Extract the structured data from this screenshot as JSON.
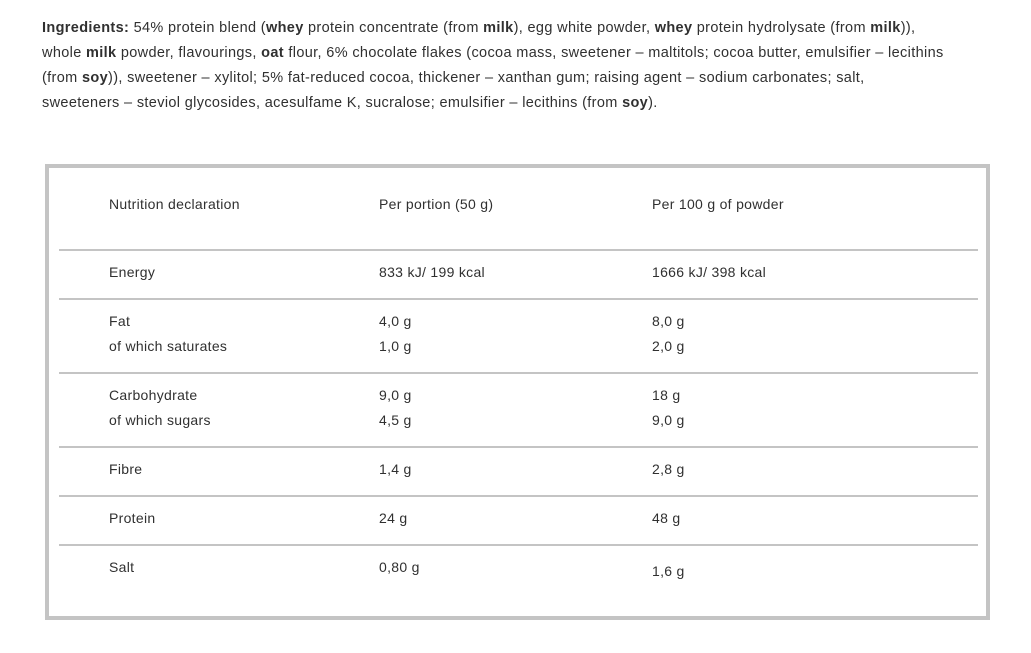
{
  "page": {
    "background": "#ffffff",
    "text_color": "#303030",
    "rule_color": "#c4c4c4"
  },
  "ingredients": {
    "lines": [
      {
        "segments": [
          {
            "text": "Ingredients: ",
            "bold": true
          },
          {
            "text": "54% protein blend (",
            "bold": false
          },
          {
            "text": "whey",
            "bold": true
          },
          {
            "text": " protein concentrate (from ",
            "bold": false
          },
          {
            "text": "milk",
            "bold": true
          },
          {
            "text": "), egg white powder, ",
            "bold": false
          },
          {
            "text": "whey",
            "bold": true
          },
          {
            "text": " protein hydrolysate (from ",
            "bold": false
          },
          {
            "text": "milk",
            "bold": true
          },
          {
            "text": ")),",
            "bold": false
          }
        ]
      },
      {
        "segments": [
          {
            "text": "whole ",
            "bold": false
          },
          {
            "text": "milk",
            "bold": true
          },
          {
            "text": " powder, flavourings, ",
            "bold": false
          },
          {
            "text": "oat",
            "bold": true
          },
          {
            "text": " flour, 6% chocolate flakes (cocoa mass, sweetener – maltitols; cocoa butter, emulsifier – lecithins",
            "bold": false
          }
        ]
      },
      {
        "segments": [
          {
            "text": "(from ",
            "bold": false
          },
          {
            "text": "soy",
            "bold": true
          },
          {
            "text": ")), sweetener – xylitol; 5% fat-reduced cocoa, thickener – xanthan gum; raising agent – sodium carbonates; salt,",
            "bold": false
          }
        ]
      },
      {
        "segments": [
          {
            "text": "sweeteners – steviol glycosides, acesulfame K, sucralose; emulsifier – lecithins (from ",
            "bold": false
          },
          {
            "text": "soy",
            "bold": true
          },
          {
            "text": ").",
            "bold": false
          }
        ]
      }
    ]
  },
  "table": {
    "headers": [
      "Nutrition declaration",
      "Per portion (50 g)",
      "Per 100 g of powder"
    ],
    "rows": [
      {
        "name": "energy",
        "cells": [
          [
            "Energy"
          ],
          [
            "833 kJ/ 199 kcal"
          ],
          [
            "1666 kJ/ 398 kcal"
          ]
        ]
      },
      {
        "name": "fat",
        "cells": [
          [
            "Fat",
            "of which saturates"
          ],
          [
            "4,0 g",
            "1,0 g"
          ],
          [
            "8,0 g",
            "2,0 g"
          ]
        ]
      },
      {
        "name": "carbohydrate",
        "cells": [
          [
            "Carbohydrate",
            "of which sugars"
          ],
          [
            "9,0 g",
            "4,5 g"
          ],
          [
            "18 g",
            "9,0 g"
          ]
        ]
      },
      {
        "name": "fibre",
        "cells": [
          [
            "Fibre"
          ],
          [
            "1,4 g"
          ],
          [
            "2,8 g"
          ]
        ]
      },
      {
        "name": "protein",
        "cells": [
          [
            "Protein"
          ],
          [
            "24 g"
          ],
          [
            "48 g"
          ]
        ]
      },
      {
        "name": "salt",
        "cells": [
          [
            "Salt"
          ],
          [
            "0,80 g"
          ],
          [
            "1,6 g"
          ]
        ]
      }
    ]
  }
}
